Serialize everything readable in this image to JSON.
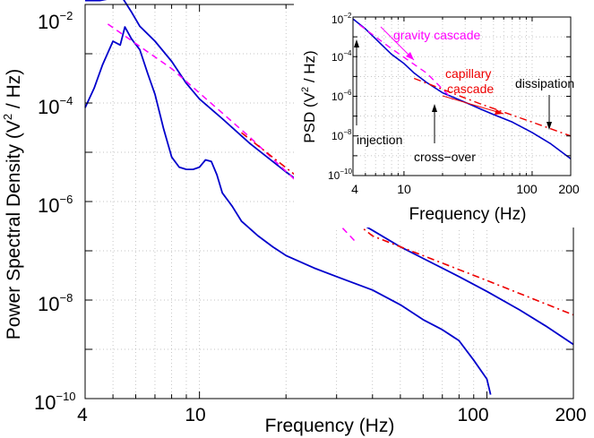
{
  "chart_data": [
    {
      "type": "line",
      "xlabel": "Frequency (Hz)",
      "ylabel": "Power Spectral Density  (V² / Hz)",
      "ylabel_main": "Power Spectral Density  (V",
      "ylabel_sup": "2",
      "ylabel_tail": " / Hz)",
      "x_scale": "log",
      "y_scale": "log",
      "xlim": [
        4,
        200
      ],
      "ylim": [
        1e-10,
        0.01
      ],
      "grid": true,
      "x_ticks": [
        {
          "value": 4,
          "label": "4"
        },
        {
          "value": 10,
          "label": "10"
        },
        {
          "value": 100,
          "label": "100"
        },
        {
          "value": 200,
          "label": "200"
        }
      ],
      "y_ticks": [
        {
          "value": 1e-10,
          "base": "10",
          "exp": "−10"
        },
        {
          "value": 1e-08,
          "base": "10",
          "exp": "−8"
        },
        {
          "value": 1e-06,
          "base": "10",
          "exp": "−6"
        },
        {
          "value": 0.0001,
          "base": "10",
          "exp": "−4"
        },
        {
          "value": 0.01,
          "base": "10",
          "exp": "−2"
        }
      ],
      "series": [
        {
          "color": "#0000cc",
          "style": "solid",
          "points": [
            [
              4,
              0.012
            ],
            [
              4.5,
              0.012
            ],
            [
              5,
              0.0135
            ],
            [
              5.4,
              0.0135
            ],
            [
              5.8,
              0.007
            ],
            [
              6.2,
              0.0036
            ],
            [
              7,
              0.0018
            ],
            [
              8,
              0.0007
            ],
            [
              9,
              0.00025
            ],
            [
              10,
              0.00012
            ],
            [
              12,
              4.8e-05
            ],
            [
              15,
              1.5e-05
            ],
            [
              20,
              4e-06
            ],
            [
              25,
              1.5e-06
            ],
            [
              30,
              7e-07
            ],
            [
              40,
              2.6e-07
            ],
            [
              50,
              1.2e-07
            ],
            [
              60,
              7e-08
            ],
            [
              80,
              3e-08
            ],
            [
              100,
              1.5e-08
            ],
            [
              130,
              6.3e-09
            ],
            [
              160,
              3e-09
            ],
            [
              200,
              1.26e-09
            ]
          ]
        },
        {
          "color": "#0000cc",
          "style": "solid",
          "points": [
            [
              4,
              8e-05
            ],
            [
              4.3,
              0.0002
            ],
            [
              4.6,
              0.0006
            ],
            [
              5,
              0.0018
            ],
            [
              5.3,
              0.0015
            ],
            [
              5.5,
              0.0035
            ],
            [
              5.8,
              0.002
            ],
            [
              6.2,
              0.0012
            ],
            [
              6.6,
              0.0004
            ],
            [
              7,
              0.00015
            ],
            [
              7.5,
              3e-05
            ],
            [
              8,
              8e-06
            ],
            [
              8.5,
              5e-06
            ],
            [
              9,
              4.5e-06
            ],
            [
              9.5,
              4.5e-06
            ],
            [
              10,
              5e-06
            ],
            [
              10.5,
              7e-06
            ],
            [
              11,
              6.5e-06
            ],
            [
              11.5,
              3.5e-06
            ],
            [
              12,
              1.5e-06
            ],
            [
              13,
              8e-07
            ],
            [
              14,
              4e-07
            ],
            [
              16,
              2e-07
            ],
            [
              18,
              1.2e-07
            ],
            [
              20,
              8e-08
            ],
            [
              25,
              4.5e-08
            ],
            [
              30,
              3e-08
            ],
            [
              40,
              1.6e-08
            ],
            [
              50,
              8e-09
            ],
            [
              60,
              4e-09
            ],
            [
              70,
              2.5e-09
            ],
            [
              80,
              1.5e-09
            ],
            [
              90,
              6e-10
            ],
            [
              100,
              2.5e-10
            ],
            [
              103,
              1.2e-10
            ]
          ]
        },
        {
          "color": "#ff00ff",
          "style": "dashed",
          "points": [
            [
              4.8,
              0.004
            ],
            [
              8,
              0.0005
            ],
            [
              15,
              2e-05
            ],
            [
              25,
              1.2e-06
            ],
            [
              35,
              1.5e-07
            ]
          ]
        },
        {
          "color": "#ee0000",
          "style": "dashdot",
          "points": [
            [
              14,
              2.5e-05
            ],
            [
              40,
              2e-07
            ],
            [
              100,
              2.5e-08
            ],
            [
              200,
              5e-09
            ]
          ]
        }
      ]
    },
    {
      "type": "line",
      "xlabel": "Frequency (Hz)",
      "ylabel": "PSD (V² / Hz)",
      "ylabel_main": "PSD (V",
      "ylabel_sup": "2",
      "ylabel_tail": " / Hz)",
      "x_scale": "log",
      "y_scale": "log",
      "xlim": [
        4,
        200
      ],
      "ylim": [
        1e-10,
        0.01
      ],
      "grid": true,
      "x_ticks": [
        {
          "value": 4,
          "label": "4"
        },
        {
          "value": 10,
          "label": "10"
        },
        {
          "value": 100,
          "label": "100"
        },
        {
          "value": 200,
          "label": "200"
        }
      ],
      "y_ticks": [
        {
          "value": 1e-10,
          "base": "10",
          "exp": "−10"
        },
        {
          "value": 1e-08,
          "base": "10",
          "exp": "−8"
        },
        {
          "value": 1e-06,
          "base": "10",
          "exp": "−6"
        },
        {
          "value": 0.0001,
          "base": "10",
          "exp": "−4"
        },
        {
          "value": 0.01,
          "base": "10",
          "exp": "−2"
        }
      ],
      "annotations": [
        {
          "text": "gravity cascade",
          "color": "#ff00ff"
        },
        {
          "text": "capillary",
          "color": "#ee0000"
        },
        {
          "text": "cascade",
          "color": "#ee0000"
        },
        {
          "text": "dissipation",
          "color": "#000000"
        },
        {
          "text": "injection",
          "color": "#000000"
        },
        {
          "text": "cross−over",
          "color": "#000000"
        }
      ],
      "series": [
        {
          "color": "#0000cc",
          "style": "solid",
          "points": [
            [
              4,
              0.008
            ],
            [
              5,
              0.0025
            ],
            [
              6,
              0.0008
            ],
            [
              7,
              0.0003
            ],
            [
              8,
              0.00013
            ],
            [
              10,
              4.5e-05
            ],
            [
              12,
              1.5e-05
            ],
            [
              15,
              5e-06
            ],
            [
              20,
              1.5e-06
            ],
            [
              30,
              5e-07
            ],
            [
              40,
              2.2e-07
            ],
            [
              50,
              1.2e-07
            ],
            [
              70,
              5e-08
            ],
            [
              100,
              1.5e-08
            ],
            [
              140,
              4e-09
            ],
            [
              200,
              7e-10
            ]
          ]
        },
        {
          "color": "#ff00ff",
          "style": "dashed",
          "points": [
            [
              4.5,
              0.004
            ],
            [
              8,
              0.00025
            ],
            [
              15,
              1.5e-05
            ],
            [
              24,
              7e-07
            ]
          ]
        },
        {
          "color": "#ee0000",
          "style": "dashdot",
          "points": [
            [
              12,
              8e-06
            ],
            [
              40,
              4e-07
            ],
            [
              100,
              5e-08
            ],
            [
              200,
              1e-08
            ]
          ]
        }
      ]
    }
  ]
}
